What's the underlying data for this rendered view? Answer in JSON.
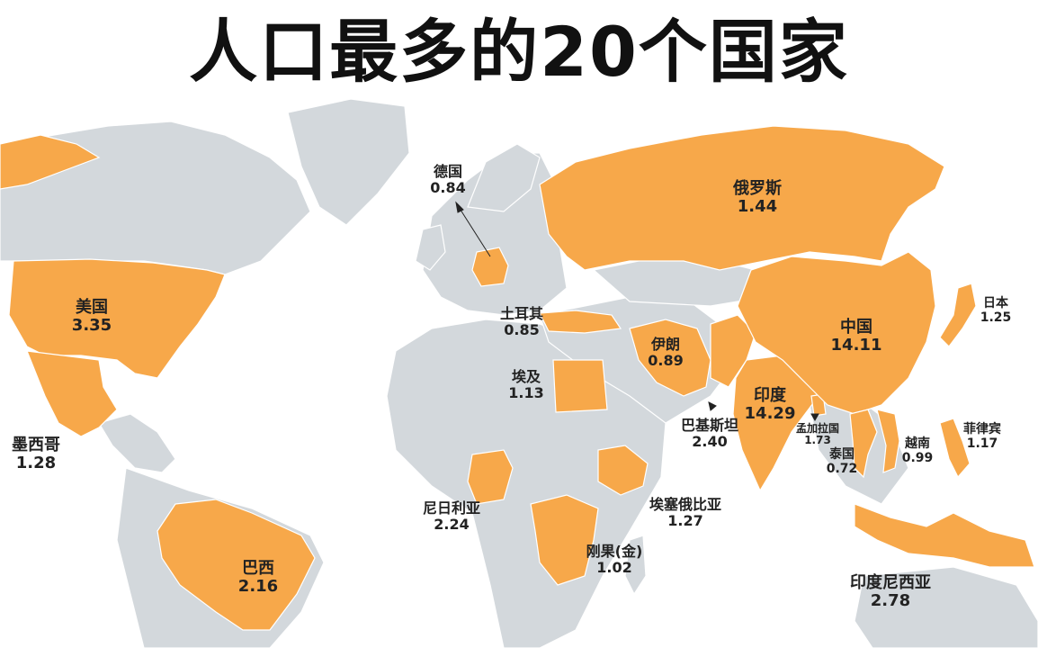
{
  "title": "人口最多的20个国家",
  "colors": {
    "highlight": "#f7a84a",
    "land": "#d3d8dc",
    "water": "#ffffff",
    "border": "#ffffff"
  },
  "countries": [
    {
      "name": "美国",
      "value": "3.35"
    },
    {
      "name": "墨西哥",
      "value": "1.28"
    },
    {
      "name": "巴西",
      "value": "2.16"
    },
    {
      "name": "德国",
      "value": "0.84"
    },
    {
      "name": "土耳其",
      "value": "0.85"
    },
    {
      "name": "埃及",
      "value": "1.13"
    },
    {
      "name": "俄罗斯",
      "value": "1.44"
    },
    {
      "name": "伊朗",
      "value": "0.89"
    },
    {
      "name": "中国",
      "value": "14.11"
    },
    {
      "name": "日本",
      "value": "1.25"
    },
    {
      "name": "印度",
      "value": "14.29"
    },
    {
      "name": "巴基斯坦",
      "value": "2.40"
    },
    {
      "name": "孟加拉国",
      "value": "1.73"
    },
    {
      "name": "泰国",
      "value": "0.72"
    },
    {
      "name": "越南",
      "value": "0.99"
    },
    {
      "name": "菲律宾",
      "value": "1.17"
    },
    {
      "name": "尼日利亚",
      "value": "2.24"
    },
    {
      "name": "埃塞俄比亚",
      "value": "1.27"
    },
    {
      "name": "刚果(金)",
      "value": "1.02"
    },
    {
      "name": "印度尼西亚",
      "value": "2.78"
    }
  ]
}
